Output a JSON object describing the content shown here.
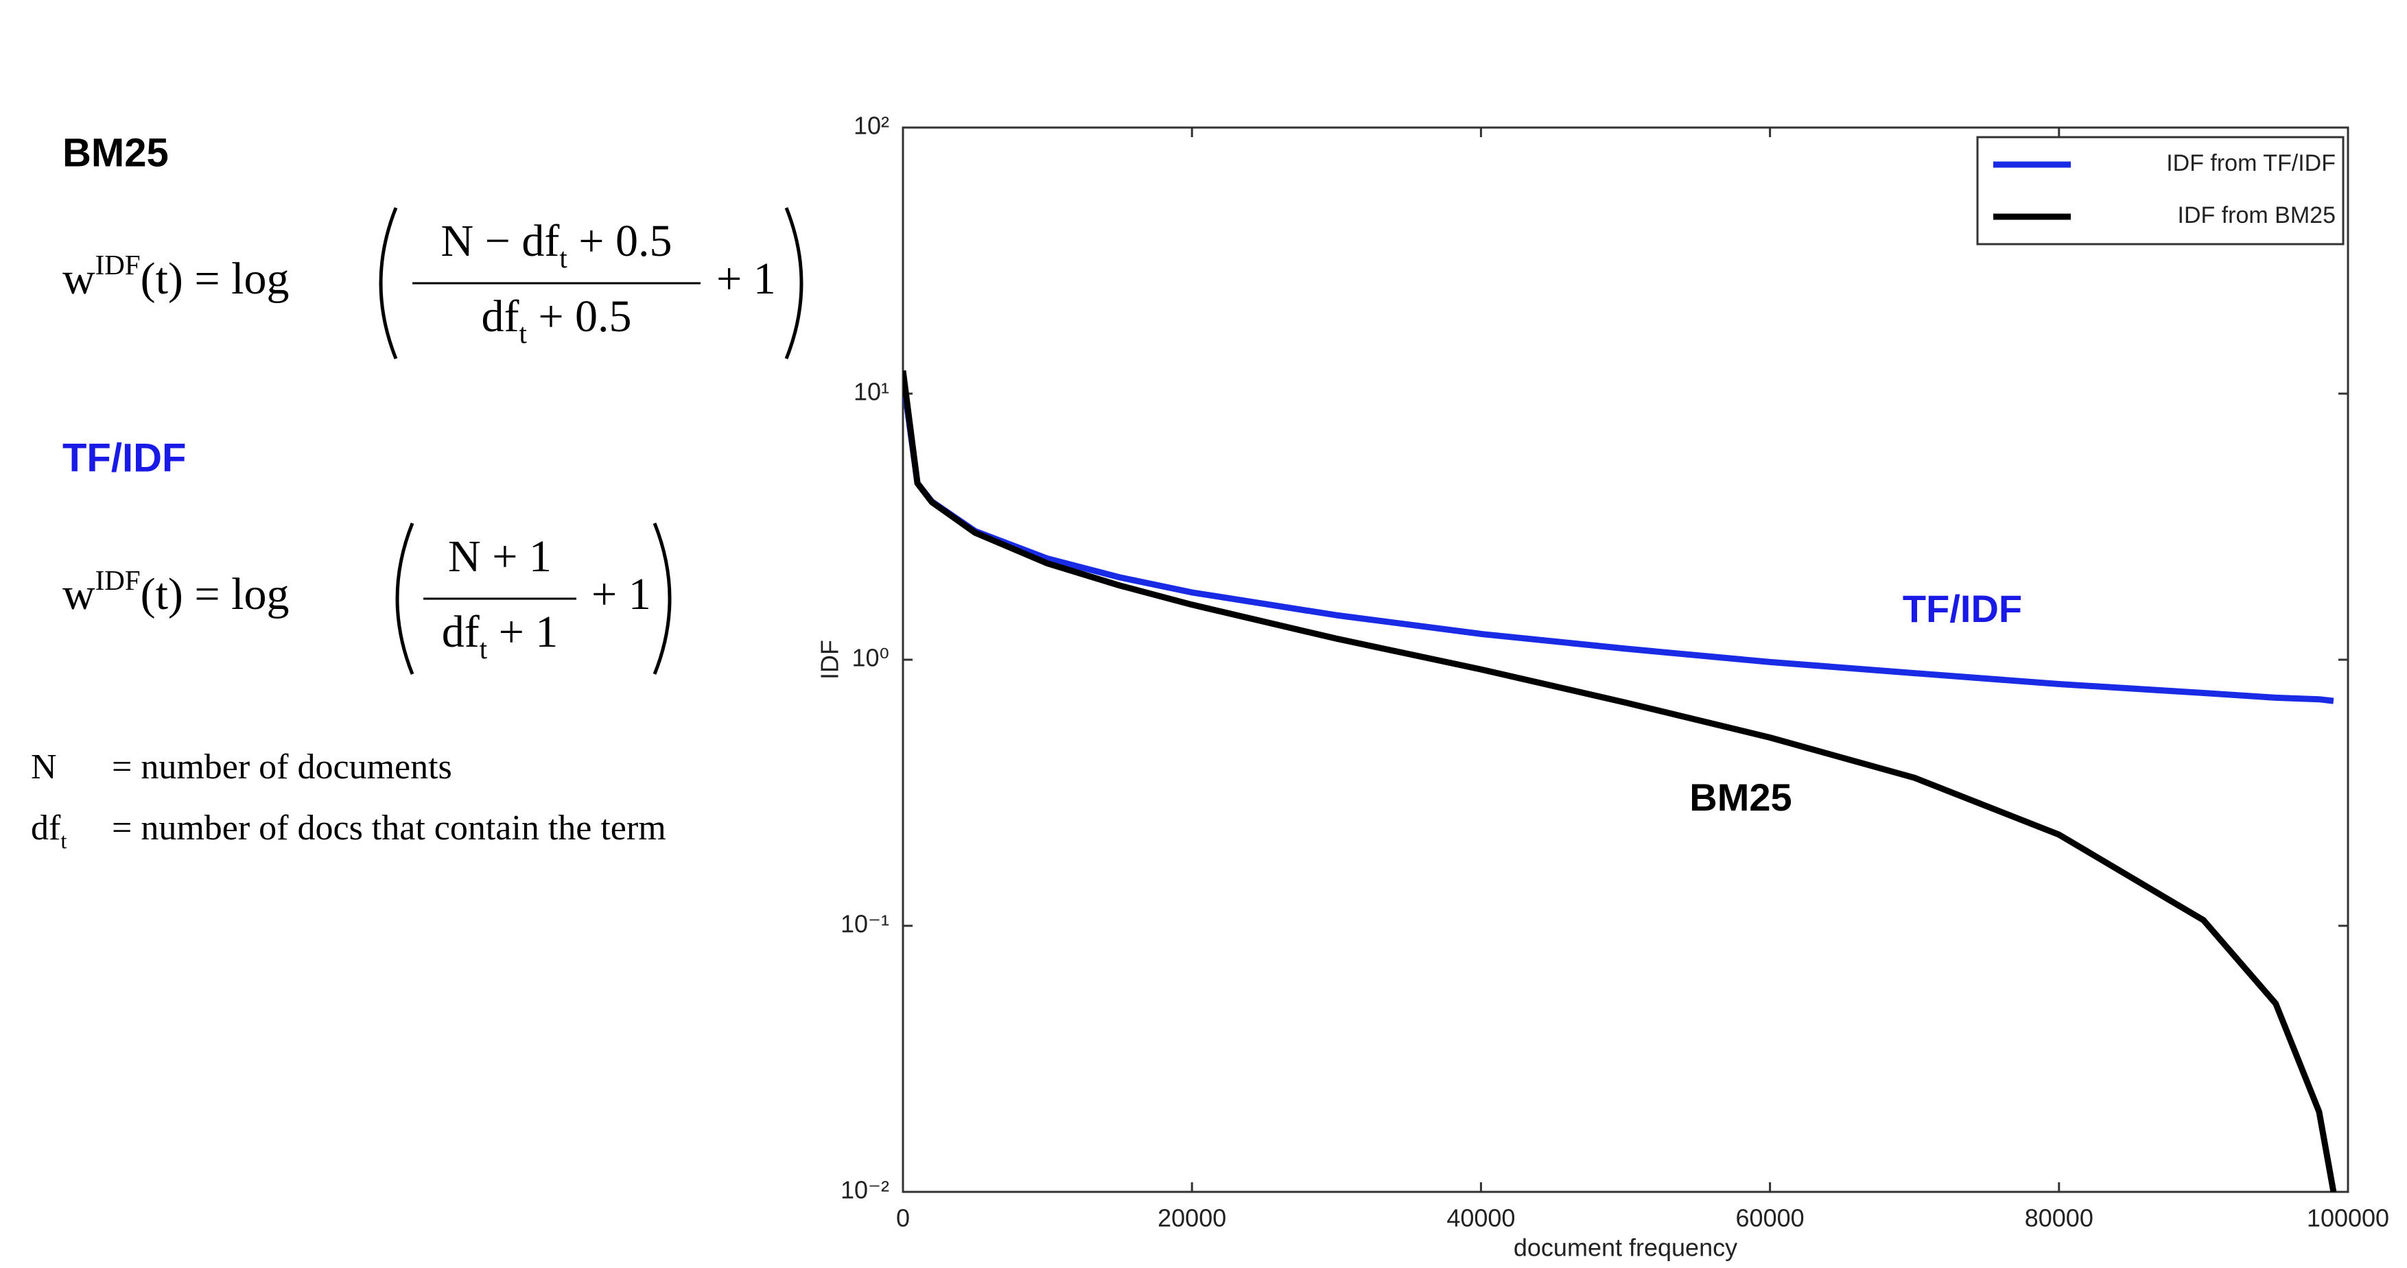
{
  "left_panel": {
    "sections": [
      {
        "heading": "BM25",
        "heading_color": "#000000",
        "formula": {
          "lhs": [
            {
              "text": "w"
            },
            {
              "sup": "IDF"
            },
            {
              "text": "(t) = log"
            }
          ],
          "numerator": [
            {
              "text": "N − df"
            },
            {
              "sub": "t"
            },
            {
              "text": " + 0.5"
            }
          ],
          "denominator": [
            {
              "text": "df"
            },
            {
              "sub": "t"
            },
            {
              "text": " + 0.5"
            }
          ],
          "tail": [
            {
              "text": "+ 1"
            }
          ]
        }
      },
      {
        "heading": "TF/IDF",
        "heading_color": "#1a1ae6",
        "formula": {
          "lhs": [
            {
              "text": "w"
            },
            {
              "sup": "IDF"
            },
            {
              "text": "(t) = log"
            }
          ],
          "numerator": [
            {
              "text": "N + 1"
            }
          ],
          "denominator": [
            {
              "text": "df"
            },
            {
              "sub": "t"
            },
            {
              "text": " + 1"
            }
          ],
          "tail": [
            {
              "text": "+ 1"
            }
          ]
        }
      }
    ],
    "definitions": [
      {
        "symbol": [
          {
            "text": "N"
          }
        ],
        "meaning": "= number of documents"
      },
      {
        "symbol": [
          {
            "text": "df"
          },
          {
            "sub": "t"
          }
        ],
        "meaning": "= number of docs that contain the term"
      }
    ]
  },
  "chart_data": {
    "type": "line",
    "x_label": "document frequency",
    "y_label": "IDF",
    "log_y": true,
    "grid": false,
    "legend": "upper right",
    "xlim": [
      0,
      100000
    ],
    "ylim": [
      0.01,
      100
    ],
    "xticks": [
      0,
      20000,
      40000,
      60000,
      80000,
      100000
    ],
    "yticks": [
      {
        "value": 0.01,
        "label": "10⁻²"
      },
      {
        "value": 0.1,
        "label": "10⁻¹"
      },
      {
        "value": 1,
        "label": "10⁰"
      },
      {
        "value": 10,
        "label": "10¹"
      },
      {
        "value": 100,
        "label": "10²"
      }
    ],
    "x": [
      0,
      1000,
      2000,
      5000,
      10000,
      15000,
      20000,
      30000,
      40000,
      50000,
      60000,
      70000,
      80000,
      90000,
      95000,
      98000,
      99000
    ],
    "series": [
      {
        "name": "IDF from TF/IDF",
        "color": "#1a2be6",
        "values": [
          11.5,
          4.61,
          3.93,
          3.04,
          2.4,
          2.04,
          1.79,
          1.47,
          1.25,
          1.1,
          0.98,
          0.89,
          0.81,
          0.75,
          0.72,
          0.71,
          0.7
        ]
      },
      {
        "name": "IDF from BM25",
        "color": "#000000",
        "values": [
          12.2,
          4.6,
          3.91,
          3.0,
          2.3,
          1.9,
          1.61,
          1.2,
          0.92,
          0.69,
          0.51,
          0.36,
          0.22,
          0.105,
          0.051,
          0.02,
          0.01
        ]
      }
    ],
    "annotations": [
      {
        "text": "TF/IDF",
        "color": "#1a1ae6"
      },
      {
        "text": "BM25",
        "color": "#000000"
      }
    ]
  }
}
